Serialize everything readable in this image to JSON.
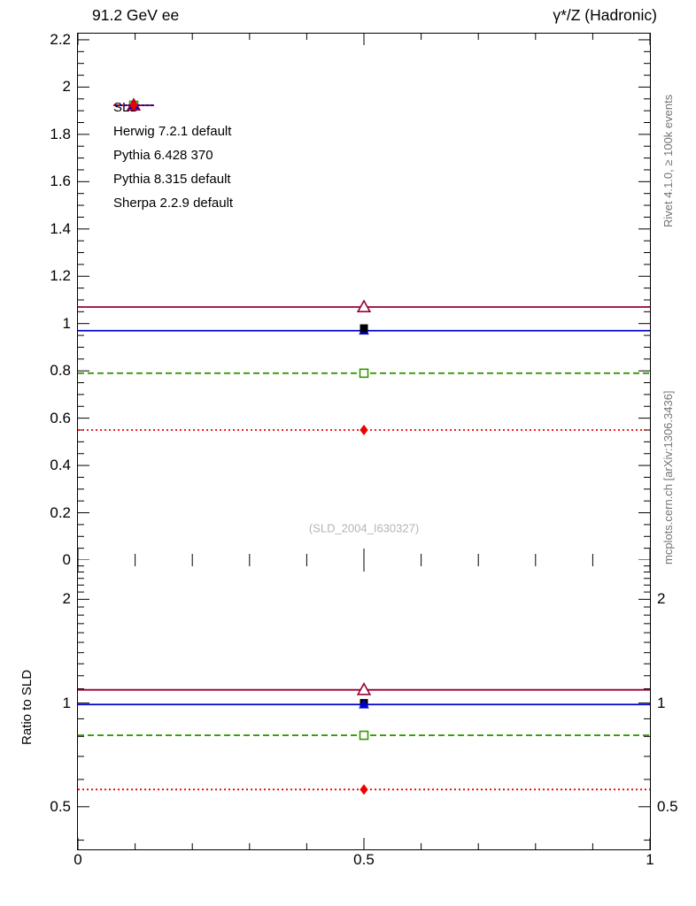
{
  "header": {
    "left": "91.2 GeV ee",
    "right": "γ*/Z (Hadronic)"
  },
  "side_notes": {
    "top_right": "Rivet 4.1.0, ≥ 100k events",
    "bottom_right": "mcplots.cern.ch [arXiv:1306.3436]"
  },
  "watermark": "(SLD_2004_I630327)",
  "chart_data": {
    "type": "line",
    "title": "",
    "xlabel": "",
    "legend_position": "top-left",
    "grid": false,
    "xlim": [
      0,
      1
    ],
    "x_ticks": {
      "minor_step": 0.1,
      "labeled": [
        {
          "v": 0,
          "t": "0"
        },
        {
          "v": 0.5,
          "t": "0.5"
        },
        {
          "v": 1,
          "t": "1"
        }
      ]
    },
    "main_panel": {
      "scale": "linear",
      "ylim": [
        0,
        2.226
      ],
      "y_ticks": {
        "minor_step": 0.05,
        "major_step": 0.2,
        "labeled": [
          {
            "v": 0,
            "t": "0"
          },
          {
            "v": 0.2,
            "t": "0.2"
          },
          {
            "v": 0.4,
            "t": "0.4"
          },
          {
            "v": 0.6,
            "t": "0.6"
          },
          {
            "v": 0.8,
            "t": "0.8"
          },
          {
            "v": 1,
            "t": "1"
          },
          {
            "v": 1.2,
            "t": "1.2"
          },
          {
            "v": 1.4,
            "t": "1.4"
          },
          {
            "v": 1.6,
            "t": "1.6"
          },
          {
            "v": 1.8,
            "t": "1.8"
          },
          {
            "v": 2,
            "t": "2"
          },
          {
            "v": 2.2,
            "t": "2.2"
          }
        ]
      }
    },
    "ratio_panel": {
      "ylabel": "Ratio to SLD",
      "scale": "log",
      "ylim": [
        0.376,
        2.6
      ],
      "y_ticks": {
        "labeled": [
          {
            "v": 0.5,
            "t": "0.5"
          },
          {
            "v": 1,
            "t": "1"
          },
          {
            "v": 2,
            "t": "2"
          }
        ],
        "minor": [
          0.4,
          0.6,
          0.7,
          0.8,
          0.9,
          1.1,
          1.2,
          1.3,
          1.4,
          1.5,
          1.6,
          1.7,
          1.8,
          1.9,
          2.1,
          2.2,
          2.3,
          2.4,
          2.5
        ]
      }
    },
    "data_series": {
      "name": "SLD",
      "color": "#000000",
      "marker": "filled-square",
      "line": "none",
      "x": 0.5,
      "value": 0.98,
      "ratio": 1.0
    },
    "mc_series": [
      {
        "name": "Herwig 7.2.1 default",
        "color": "#339900",
        "line": "dashed",
        "marker": "open-square",
        "x": 0.5,
        "value": 0.79,
        "ratio": 0.806
      },
      {
        "name": "Pythia 6.428 370",
        "color": "#990033",
        "line": "solid",
        "marker": "open-triangle",
        "x": 0.5,
        "value": 1.07,
        "ratio": 1.092
      },
      {
        "name": "Pythia 8.315 default",
        "color": "#0000cc",
        "line": "solid",
        "marker": "filled-triangle",
        "x": 0.5,
        "value": 0.97,
        "ratio": 0.99
      },
      {
        "name": "Sherpa 2.2.9 default",
        "color": "#ee0000",
        "line": "dotted",
        "marker": "filled-diamond",
        "x": 0.5,
        "value": 0.55,
        "ratio": 0.561
      }
    ]
  }
}
